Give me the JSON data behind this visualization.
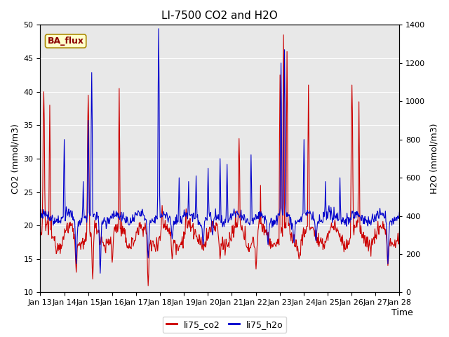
{
  "title": "LI-7500 CO2 and H2O",
  "xlabel": "Time",
  "ylabel_left": "CO2 (mmol/m3)",
  "ylabel_right": "H2O (mmol/m3)",
  "ylim_left": [
    10,
    50
  ],
  "ylim_right": [
    0,
    1400
  ],
  "yticks_left": [
    10,
    15,
    20,
    25,
    30,
    35,
    40,
    45,
    50
  ],
  "yticks_right": [
    0,
    200,
    400,
    600,
    800,
    1000,
    1200,
    1400
  ],
  "x_tick_labels": [
    "Jan 13",
    "Jan 14",
    "Jan 15",
    "Jan 16",
    "Jan 17",
    "Jan 18",
    "Jan 19",
    "Jan 20",
    "Jan 21",
    "Jan 22",
    "Jan 23",
    "Jan 24",
    "Jan 25",
    "Jan 26",
    "Jan 27",
    "Jan 28"
  ],
  "color_co2": "#cc0000",
  "color_h2o": "#0000cc",
  "bg_color": "#e8e8e8",
  "fig_bg": "#ffffff",
  "legend_label_co2": "li75_co2",
  "legend_label_h2o": "li75_h2o",
  "annotation_text": "BA_flux",
  "annotation_fg": "#8b0000",
  "annotation_bg": "#ffffcc",
  "annotation_border": "#aa8800",
  "linewidth": 0.8,
  "title_fontsize": 11,
  "label_fontsize": 9,
  "tick_fontsize": 8,
  "legend_fontsize": 9,
  "annot_fontsize": 9
}
